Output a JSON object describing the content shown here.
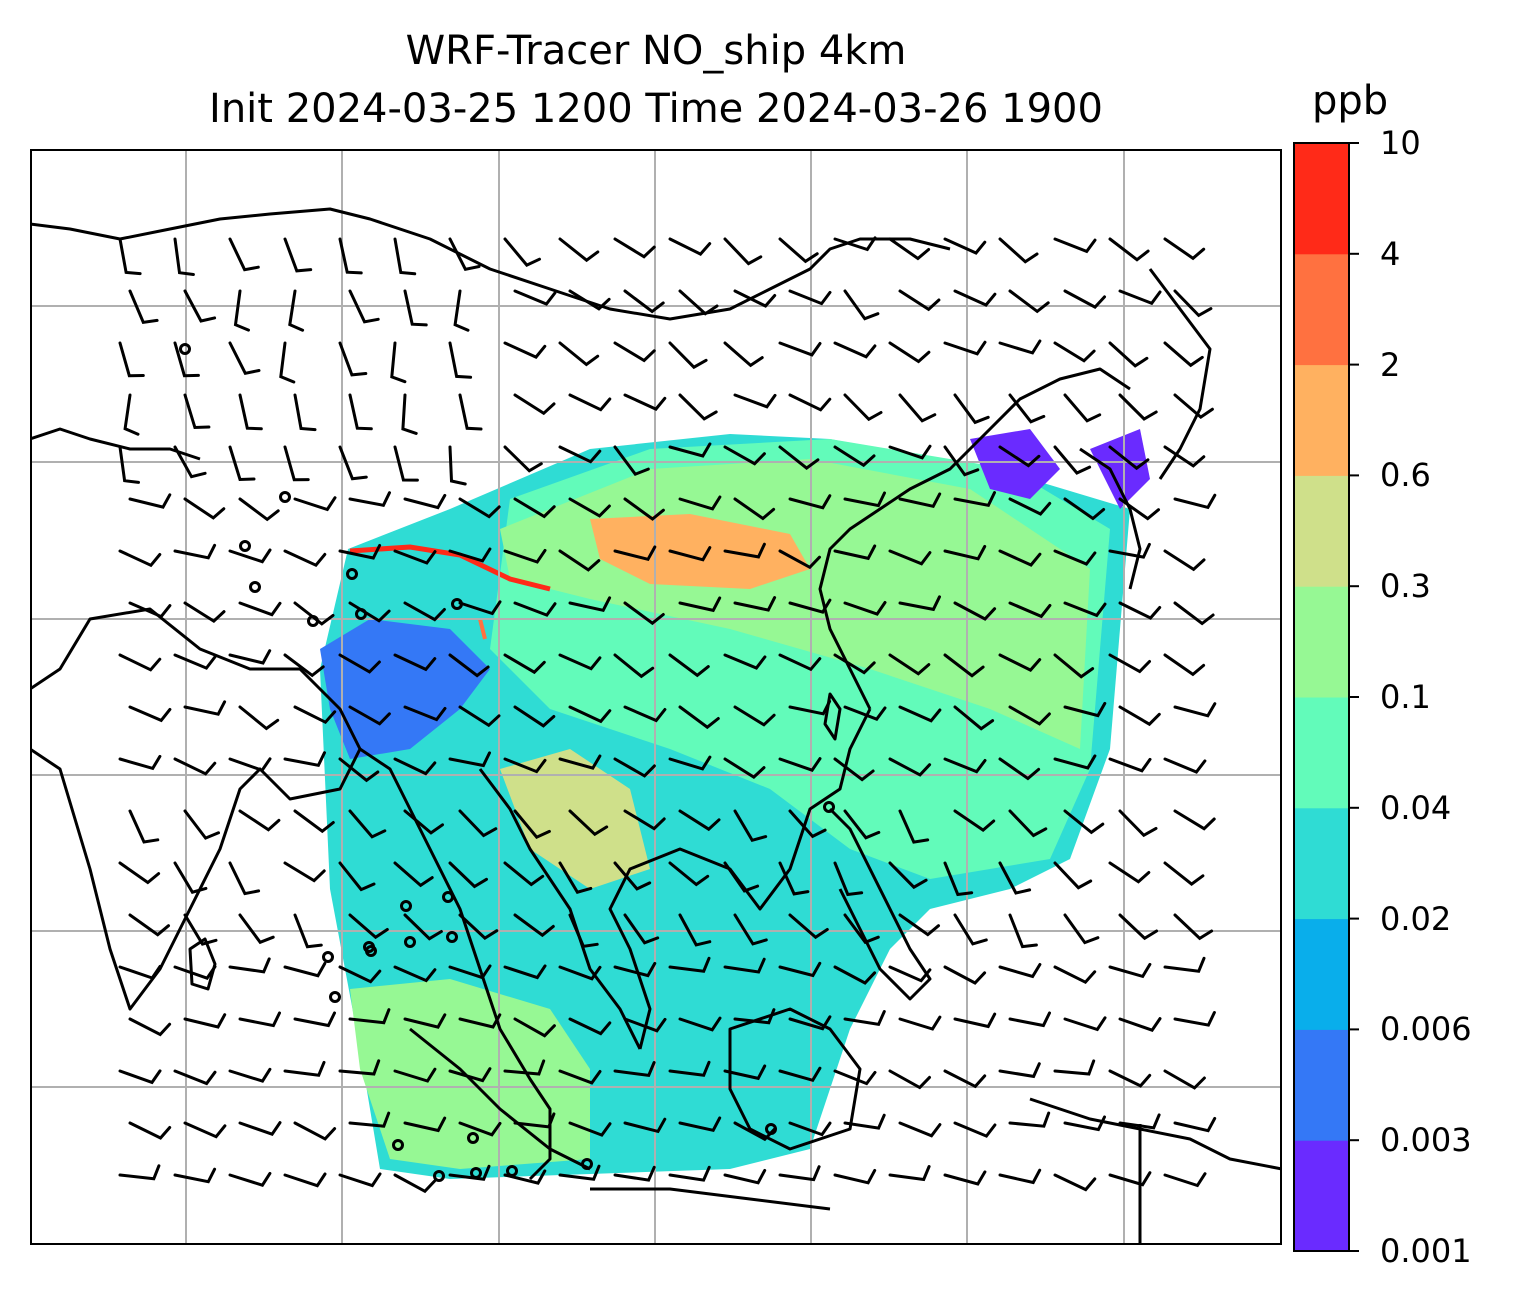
{
  "title": {
    "line1": "WRF-Tracer NO_ship 4km",
    "line2": "Init 2024-03-25 1200 Time 2024-03-26 1900"
  },
  "colorbar": {
    "unit": "ppb",
    "levels": [
      "0.001",
      "0.003",
      "0.006",
      "0.02",
      "0.04",
      "0.1",
      "0.3",
      "0.6",
      "2",
      "4",
      "10"
    ],
    "colors": [
      "#6a2bff",
      "#3478f6",
      "#09aeeb",
      "#2fdcd4",
      "#62fbba",
      "#96f894",
      "#cfe08a",
      "#ffb160",
      "#ff7140",
      "#ff2a18"
    ]
  },
  "map": {
    "field": "NO_ship",
    "grid": "4km",
    "overlays": [
      "coastlines",
      "graticule",
      "wind-barbs",
      "calm-circles"
    ],
    "grid_color": "#b0b0b0"
  }
}
